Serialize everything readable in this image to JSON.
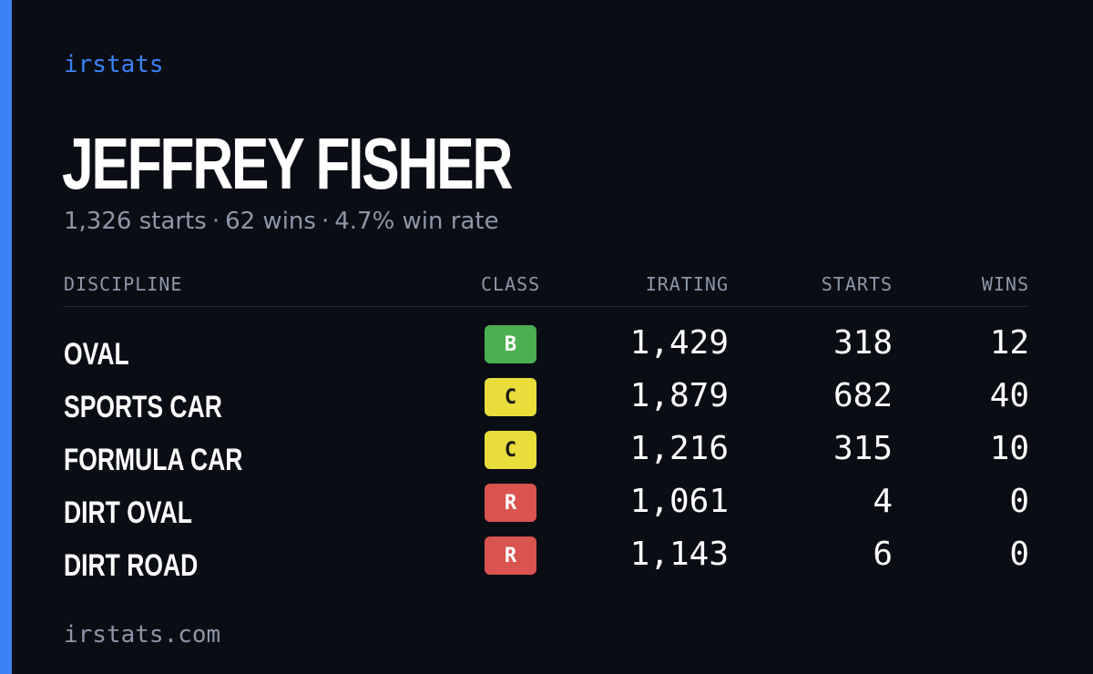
{
  "brand": "irstats",
  "driver_name": "JEFFREY FISHER",
  "summary": {
    "starts": "1,326 starts",
    "wins": "62 wins",
    "win_rate": "4.7% win rate",
    "separator": "·"
  },
  "columns": {
    "discipline": "DISCIPLINE",
    "class": "CLASS",
    "irating": "IRATING",
    "starts": "STARTS",
    "wins": "WINS"
  },
  "rows": [
    {
      "discipline": "OVAL",
      "class": "B",
      "class_bg": "#4caf50",
      "class_fg": "#ffffff",
      "irating": "1,429",
      "starts": "318",
      "wins": "12"
    },
    {
      "discipline": "SPORTS CAR",
      "class": "C",
      "class_bg": "#e8dd3a",
      "class_fg": "#1a1a1a",
      "irating": "1,879",
      "starts": "682",
      "wins": "40"
    },
    {
      "discipline": "FORMULA CAR",
      "class": "C",
      "class_bg": "#e8dd3a",
      "class_fg": "#1a1a1a",
      "irating": "1,216",
      "starts": "315",
      "wins": "10"
    },
    {
      "discipline": "DIRT OVAL",
      "class": "R",
      "class_bg": "#d9534f",
      "class_fg": "#ffffff",
      "irating": "1,061",
      "starts": "4",
      "wins": "0"
    },
    {
      "discipline": "DIRT ROAD",
      "class": "R",
      "class_bg": "#d9534f",
      "class_fg": "#ffffff",
      "irating": "1,143",
      "starts": "6",
      "wins": "0"
    }
  ],
  "footer": "irstats.com",
  "colors": {
    "background": "#0a0d14",
    "accent": "#3b82f6",
    "muted_text": "#8d97a8",
    "text": "#ffffff"
  }
}
